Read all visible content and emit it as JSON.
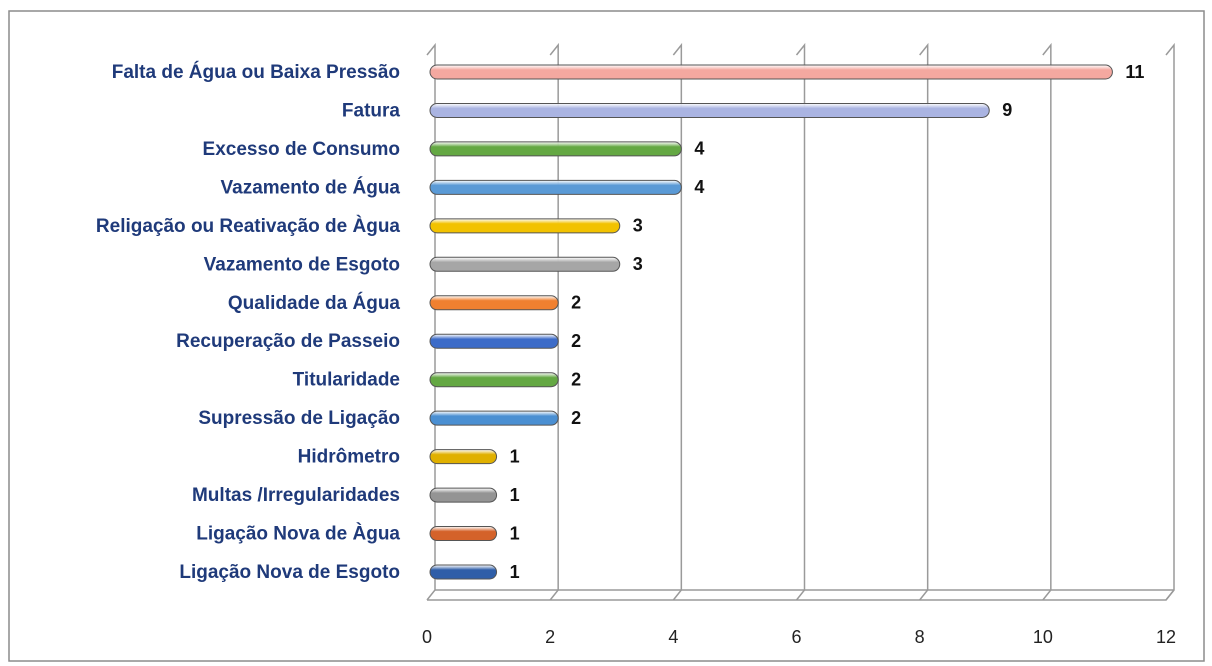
{
  "chart_data": {
    "type": "hbar",
    "categories": [
      "Falta de Água ou Baixa Pressão",
      "Fatura",
      "Excesso de Consumo",
      "Vazamento de Água",
      "Religação ou Reativação de Àgua",
      "Vazamento de Esgoto",
      "Qualidade da Água",
      "Recuperação de Passeio",
      "Titularidade",
      "Supressão de Ligação",
      "Hidrômetro",
      "Multas /Irregularidades",
      "Ligação Nova de Àgua",
      "Ligação Nova de Esgoto"
    ],
    "values": [
      11,
      9,
      4,
      4,
      3,
      3,
      2,
      2,
      2,
      2,
      1,
      1,
      1,
      1
    ],
    "colors": [
      "#f4a8a0",
      "#aab4e2",
      "#64a843",
      "#5a9ad6",
      "#f2c200",
      "#a6a6a6",
      "#f08030",
      "#3d6cc8",
      "#64a843",
      "#4a8fd2",
      "#e0b000",
      "#949494",
      "#d4622a",
      "#2f5ea8"
    ],
    "xlim": [
      0,
      12
    ],
    "xticks": [
      0,
      2,
      4,
      6,
      8,
      10,
      12
    ],
    "grid": true
  }
}
